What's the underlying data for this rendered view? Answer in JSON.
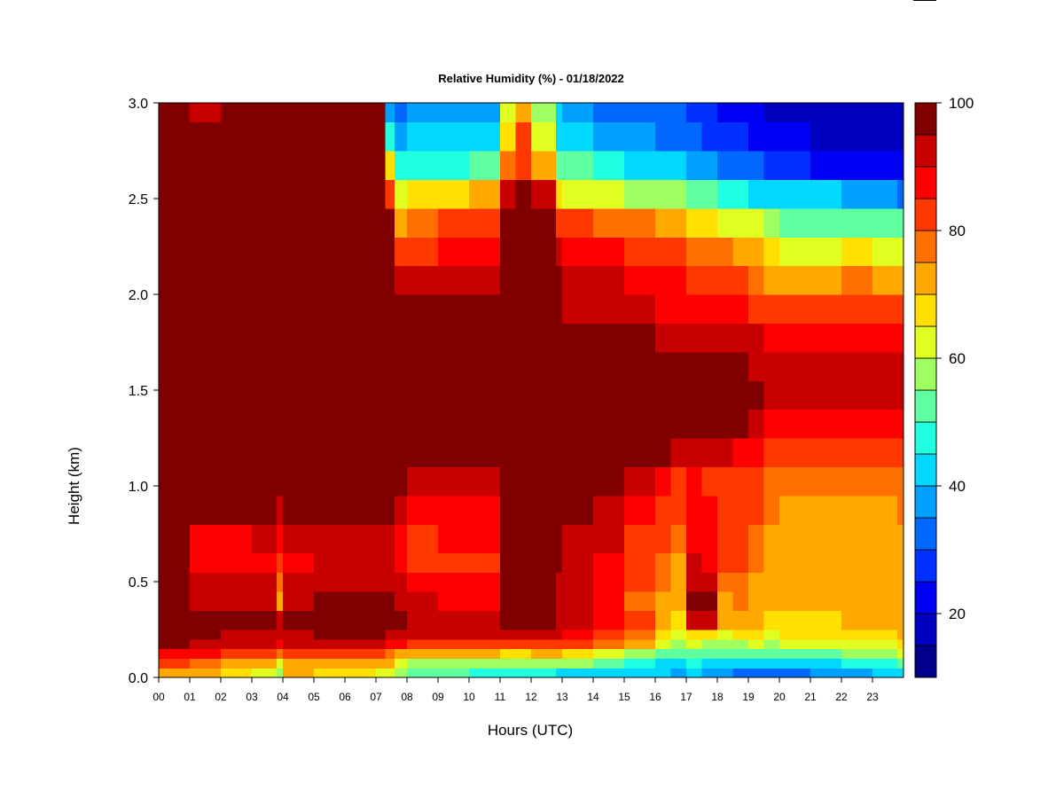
{
  "chart_data": {
    "type": "heatmap",
    "title": "Relative Humidity (%) - 01/18/2022",
    "xlabel": "Hours (UTC)",
    "ylabel": "Height (km)",
    "xlim": [
      0,
      24
    ],
    "ylim": [
      0.0,
      3.0
    ],
    "x_ticks": [
      "00",
      "01",
      "02",
      "03",
      "04",
      "05",
      "06",
      "07",
      "08",
      "09",
      "10",
      "11",
      "12",
      "13",
      "14",
      "15",
      "16",
      "17",
      "18",
      "19",
      "20",
      "21",
      "22",
      "23"
    ],
    "y_ticks": [
      "0.0",
      "0.5",
      "1.0",
      "1.5",
      "2.0",
      "2.5",
      "3.0"
    ],
    "colorbar": {
      "range": [
        10,
        100
      ],
      "step": 5,
      "tick_values": [
        20,
        40,
        60,
        80,
        100
      ],
      "colors": [
        "#00008a",
        "#0000c0",
        "#0000f5",
        "#0030ff",
        "#0068ff",
        "#00a0ff",
        "#00d8ff",
        "#20ffe0",
        "#60ffa0",
        "#a0ff60",
        "#e0ff20",
        "#ffe000",
        "#ffa800",
        "#ff7000",
        "#ff3800",
        "#ff0000",
        "#c80000",
        "#800000"
      ]
    },
    "rows_height_km": [
      0.0,
      0.05,
      0.1,
      0.15,
      0.2,
      0.25,
      0.35,
      0.45,
      0.55,
      0.65,
      0.8,
      0.95,
      1.1,
      1.25,
      1.4,
      1.55,
      1.7,
      1.85,
      2.0,
      2.15,
      2.3,
      2.45,
      2.6,
      2.75,
      2.9,
      3.0
    ],
    "columns_hour": [
      0.0,
      1.0,
      2.0,
      3.0,
      3.8,
      4.0,
      5.0,
      6.0,
      7.0,
      7.3,
      7.6,
      8.0,
      9.0,
      10.0,
      11.0,
      11.5,
      12.0,
      12.8,
      13.0,
      14.0,
      15.0,
      16.0,
      16.5,
      17.0,
      17.5,
      18.0,
      18.5,
      19.0,
      19.5,
      20.0,
      21.0,
      22.0,
      23.0,
      23.8
    ],
    "rh_values": [
      [
        72,
        70,
        65,
        62,
        55,
        70,
        66,
        66,
        64,
        62,
        56,
        50,
        50,
        48,
        46,
        46,
        45,
        44,
        44,
        44,
        40,
        40,
        38,
        40,
        38,
        36,
        34,
        34,
        32,
        34,
        36,
        38,
        40,
        42
      ],
      [
        80,
        78,
        74,
        72,
        64,
        74,
        74,
        74,
        72,
        70,
        64,
        58,
        58,
        56,
        55,
        56,
        56,
        56,
        55,
        52,
        48,
        44,
        42,
        46,
        44,
        42,
        40,
        40,
        40,
        42,
        44,
        46,
        48,
        50
      ],
      [
        88,
        86,
        82,
        82,
        76,
        82,
        82,
        82,
        80,
        78,
        74,
        70,
        72,
        70,
        68,
        68,
        70,
        70,
        68,
        64,
        58,
        52,
        50,
        54,
        52,
        50,
        50,
        52,
        50,
        52,
        54,
        56,
        58,
        60
      ],
      [
        95,
        92,
        90,
        90,
        86,
        90,
        92,
        92,
        90,
        88,
        86,
        82,
        84,
        82,
        84,
        84,
        84,
        82,
        80,
        76,
        70,
        62,
        58,
        60,
        58,
        56,
        58,
        60,
        58,
        60,
        62,
        62,
        64,
        66
      ],
      [
        100,
        96,
        94,
        94,
        92,
        94,
        95,
        96,
        96,
        94,
        94,
        92,
        92,
        90,
        92,
        92,
        92,
        90,
        88,
        84,
        76,
        68,
        64,
        66,
        66,
        64,
        66,
        66,
        64,
        66,
        66,
        68,
        68,
        70
      ],
      [
        100,
        98,
        96,
        96,
        92,
        96,
        97,
        98,
        98,
        98,
        96,
        94,
        92,
        92,
        95,
        96,
        96,
        94,
        92,
        88,
        80,
        72,
        68,
        94,
        94,
        70,
        72,
        70,
        68,
        68,
        68,
        70,
        70,
        72
      ],
      [
        100,
        94,
        92,
        92,
        74,
        92,
        96,
        96,
        96,
        96,
        94,
        90,
        88,
        88,
        96,
        96,
        96,
        94,
        90,
        86,
        78,
        74,
        70,
        96,
        96,
        74,
        76,
        72,
        70,
        70,
        70,
        70,
        70,
        72
      ],
      [
        100,
        90,
        90,
        90,
        78,
        90,
        92,
        92,
        92,
        92,
        90,
        86,
        86,
        86,
        96,
        96,
        96,
        94,
        92,
        86,
        80,
        76,
        72,
        92,
        90,
        78,
        78,
        74,
        70,
        70,
        70,
        70,
        70,
        72
      ],
      [
        100,
        88,
        88,
        88,
        82,
        88,
        92,
        92,
        92,
        90,
        88,
        84,
        84,
        84,
        98,
        98,
        98,
        96,
        92,
        88,
        82,
        78,
        74,
        90,
        88,
        80,
        80,
        76,
        72,
        72,
        72,
        72,
        72,
        74
      ],
      [
        100,
        88,
        88,
        90,
        86,
        90,
        92,
        94,
        94,
        92,
        88,
        84,
        86,
        86,
        100,
        100,
        100,
        98,
        94,
        90,
        84,
        80,
        76,
        88,
        86,
        82,
        82,
        78,
        74,
        72,
        72,
        72,
        72,
        74
      ],
      [
        100,
        100,
        100,
        100,
        94,
        100,
        100,
        100,
        100,
        100,
        94,
        88,
        86,
        86,
        100,
        100,
        100,
        100,
        96,
        92,
        86,
        82,
        80,
        86,
        86,
        84,
        84,
        80,
        76,
        74,
        74,
        74,
        74,
        76
      ],
      [
        100,
        100,
        100,
        100,
        98,
        100,
        100,
        100,
        100,
        100,
        96,
        94,
        92,
        92,
        100,
        100,
        100,
        100,
        100,
        96,
        92,
        88,
        84,
        86,
        84,
        84,
        84,
        82,
        78,
        76,
        76,
        76,
        76,
        78
      ],
      [
        100,
        100,
        100,
        100,
        100,
        100,
        100,
        100,
        100,
        100,
        98,
        98,
        100,
        100,
        100,
        100,
        100,
        100,
        100,
        100,
        98,
        96,
        92,
        92,
        90,
        90,
        88,
        86,
        82,
        80,
        80,
        80,
        80,
        82
      ],
      [
        100,
        100,
        100,
        100,
        100,
        100,
        100,
        100,
        100,
        100,
        100,
        100,
        100,
        100,
        100,
        100,
        100,
        100,
        100,
        100,
        100,
        100,
        100,
        100,
        100,
        100,
        96,
        92,
        88,
        86,
        86,
        86,
        86,
        88
      ],
      [
        100,
        100,
        100,
        100,
        100,
        100,
        100,
        100,
        100,
        100,
        100,
        100,
        100,
        100,
        100,
        100,
        100,
        100,
        100,
        100,
        100,
        100,
        100,
        100,
        100,
        100,
        100,
        96,
        92,
        90,
        90,
        90,
        90,
        92
      ],
      [
        100,
        100,
        100,
        100,
        100,
        100,
        100,
        100,
        100,
        100,
        100,
        100,
        100,
        100,
        100,
        100,
        100,
        100,
        100,
        100,
        100,
        100,
        100,
        98,
        98,
        98,
        98,
        94,
        92,
        90,
        90,
        92,
        92,
        92
      ],
      [
        100,
        100,
        100,
        100,
        100,
        100,
        100,
        100,
        100,
        100,
        100,
        100,
        100,
        100,
        100,
        100,
        100,
        100,
        100,
        100,
        96,
        94,
        94,
        92,
        92,
        92,
        92,
        90,
        88,
        88,
        88,
        88,
        88,
        88
      ],
      [
        100,
        100,
        100,
        100,
        100,
        100,
        100,
        100,
        100,
        100,
        98,
        96,
        96,
        96,
        100,
        100,
        100,
        100,
        94,
        92,
        90,
        88,
        88,
        86,
        86,
        86,
        86,
        84,
        80,
        80,
        82,
        82,
        80,
        80
      ],
      [
        100,
        100,
        100,
        100,
        100,
        100,
        100,
        100,
        100,
        100,
        92,
        90,
        90,
        90,
        100,
        100,
        100,
        96,
        92,
        90,
        88,
        86,
        86,
        82,
        82,
        82,
        80,
        78,
        74,
        72,
        74,
        76,
        72,
        72
      ],
      [
        100,
        100,
        100,
        100,
        100,
        100,
        100,
        100,
        100,
        100,
        82,
        84,
        86,
        86,
        100,
        100,
        100,
        90,
        88,
        86,
        84,
        82,
        82,
        76,
        76,
        76,
        72,
        70,
        66,
        64,
        64,
        66,
        62,
        62
      ],
      [
        100,
        100,
        100,
        100,
        100,
        100,
        100,
        100,
        100,
        98,
        74,
        78,
        82,
        84,
        100,
        100,
        100,
        82,
        80,
        78,
        76,
        74,
        74,
        68,
        66,
        64,
        62,
        60,
        56,
        54,
        54,
        54,
        52,
        50
      ],
      [
        100,
        100,
        100,
        100,
        100,
        100,
        100,
        100,
        100,
        84,
        62,
        66,
        68,
        70,
        90,
        96,
        92,
        68,
        64,
        60,
        58,
        56,
        56,
        52,
        50,
        48,
        46,
        44,
        42,
        40,
        40,
        38,
        36,
        34
      ],
      [
        100,
        100,
        100,
        100,
        100,
        100,
        100,
        100,
        100,
        66,
        46,
        48,
        48,
        50,
        76,
        84,
        74,
        54,
        50,
        46,
        44,
        42,
        42,
        38,
        36,
        34,
        32,
        30,
        28,
        26,
        24,
        22,
        22,
        20
      ],
      [
        100,
        100,
        100,
        100,
        100,
        100,
        100,
        100,
        100,
        48,
        38,
        40,
        40,
        42,
        68,
        80,
        64,
        44,
        42,
        38,
        36,
        34,
        34,
        30,
        28,
        28,
        26,
        24,
        22,
        20,
        18,
        18,
        18,
        16
      ],
      [
        96,
        94,
        96,
        96,
        96,
        96,
        96,
        96,
        98,
        38,
        34,
        36,
        36,
        38,
        62,
        72,
        58,
        40,
        38,
        34,
        32,
        30,
        30,
        28,
        26,
        24,
        22,
        20,
        18,
        18,
        16,
        16,
        16,
        16
      ],
      [
        92,
        90,
        92,
        92,
        92,
        92,
        92,
        92,
        94,
        34,
        30,
        32,
        32,
        34,
        58,
        66,
        54,
        36,
        34,
        30,
        30,
        28,
        28,
        26,
        24,
        22,
        20,
        18,
        16,
        16,
        16,
        16,
        16,
        14
      ]
    ]
  }
}
